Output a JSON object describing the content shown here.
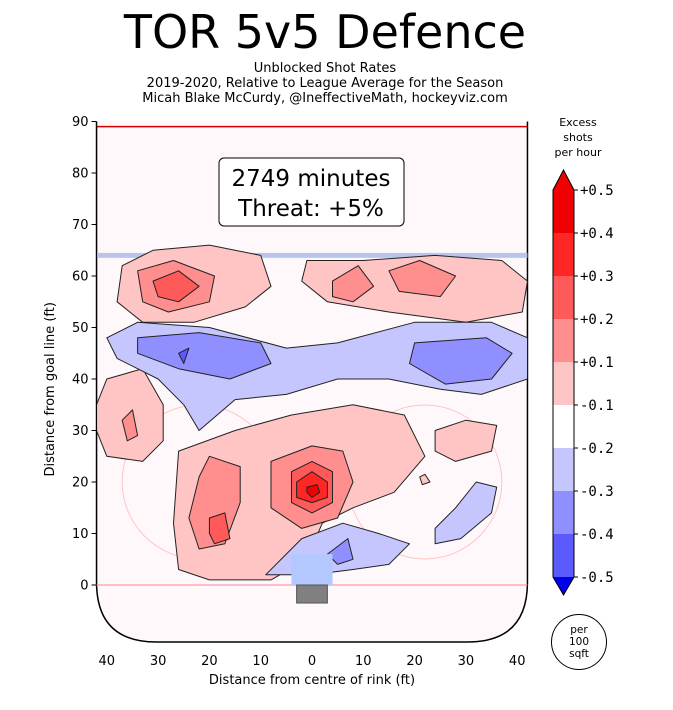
{
  "header": {
    "title": "TOR 5v5 Defence",
    "subtitle_lines": [
      "Unblocked Shot Rates",
      "2019-2020, Relative to League Average for the Season",
      "Micah Blake McCurdy, @IneffectiveMath, hockeyviz.com"
    ]
  },
  "info_box": {
    "line1": "2749 minutes",
    "line2": "Threat: +5%"
  },
  "colorbar": {
    "title_lines": [
      "Excess",
      "shots",
      "per hour"
    ],
    "tick_labels": [
      "+0.5",
      "+0.4",
      "+0.3",
      "+0.2",
      "+0.1",
      "-0.1",
      "-0.2",
      "-0.3",
      "-0.4",
      "-0.5"
    ]
  },
  "note": {
    "lines": [
      "per",
      "100",
      "sqft"
    ]
  },
  "colors": {
    "red_levels": [
      "#ffc4c4",
      "#ff8f8f",
      "#ff5a5a",
      "#ff2626",
      "#f00000"
    ],
    "blue_levels": [
      "#c6c6ff",
      "#8f8fff",
      "#5a5aff",
      "#2626ff",
      "#0000f0"
    ],
    "rink_fill": "#fff8fb",
    "blue_line": "#b8c6ee",
    "goal_line": "#ff9ba6",
    "faceoff_circle": "#ffc4c4",
    "crease": "#b3c8ff",
    "net": "#808080"
  },
  "chart_data": {
    "type": "heatmap",
    "title": "TOR 5v5 Defence",
    "xlabel": "Distance from centre of rink (ft)",
    "ylabel": "Distance from goal line (ft)",
    "xlim": [
      -42,
      42
    ],
    "ylim": [
      -11,
      90
    ],
    "x_ticks": [
      -40,
      -30,
      -20,
      -10,
      0,
      10,
      20,
      30,
      40
    ],
    "x_tick_labels": [
      "40",
      "30",
      "20",
      "10",
      "0",
      "10",
      "20",
      "30",
      "40"
    ],
    "y_ticks": [
      0,
      10,
      20,
      30,
      40,
      50,
      60,
      70,
      80,
      90
    ],
    "y_tick_labels": [
      "0",
      "10",
      "20",
      "30",
      "40",
      "50",
      "60",
      "70",
      "80",
      "90"
    ],
    "colorbar_range": [
      -0.5,
      0.5
    ],
    "colorbar_unit": "Excess shots per hour",
    "regions": [
      {
        "sign": "+",
        "level": 1,
        "points": [
          [
            -37,
            62
          ],
          [
            -31,
            65
          ],
          [
            -20,
            66
          ],
          [
            -10,
            64
          ],
          [
            -8,
            58
          ],
          [
            -13,
            54
          ],
          [
            -23,
            51
          ],
          [
            -33,
            51
          ],
          [
            -38,
            55
          ]
        ]
      },
      {
        "sign": "+",
        "level": 2,
        "points": [
          [
            -34,
            61
          ],
          [
            -27,
            63
          ],
          [
            -19,
            60
          ],
          [
            -20,
            55
          ],
          [
            -28,
            53
          ],
          [
            -33,
            55
          ]
        ]
      },
      {
        "sign": "+",
        "level": 3,
        "points": [
          [
            -31,
            59
          ],
          [
            -26,
            61
          ],
          [
            -22,
            58
          ],
          [
            -26,
            55
          ],
          [
            -30,
            56
          ]
        ]
      },
      {
        "sign": "+",
        "level": 1,
        "points": [
          [
            -1,
            63
          ],
          [
            10,
            63
          ],
          [
            24,
            64
          ],
          [
            37,
            63
          ],
          [
            42,
            59
          ],
          [
            41,
            53
          ],
          [
            30,
            51
          ],
          [
            15,
            53
          ],
          [
            3,
            55
          ],
          [
            -2,
            59
          ]
        ]
      },
      {
        "sign": "+",
        "level": 2,
        "points": [
          [
            4,
            59
          ],
          [
            9,
            62
          ],
          [
            12,
            58
          ],
          [
            8,
            55
          ],
          [
            4,
            56
          ]
        ]
      },
      {
        "sign": "+",
        "level": 2,
        "points": [
          [
            15,
            61
          ],
          [
            21,
            63
          ],
          [
            28,
            60
          ],
          [
            25,
            56
          ],
          [
            17,
            57
          ]
        ]
      },
      {
        "sign": "+",
        "level": 1,
        "points": [
          [
            -42,
            35
          ],
          [
            -40,
            40
          ],
          [
            -33,
            42
          ],
          [
            -29,
            35
          ],
          [
            -29,
            28
          ],
          [
            -33,
            24
          ],
          [
            -40,
            25
          ],
          [
            -42,
            30
          ]
        ]
      },
      {
        "sign": "+",
        "level": 2,
        "points": [
          [
            -37,
            32
          ],
          [
            -35,
            34
          ],
          [
            -34,
            29
          ],
          [
            -36,
            28
          ]
        ]
      },
      {
        "sign": "+",
        "level": 1,
        "points": [
          [
            -26,
            26
          ],
          [
            -15,
            30
          ],
          [
            -4,
            33
          ],
          [
            8,
            35
          ],
          [
            18,
            33
          ],
          [
            22,
            25
          ],
          [
            16,
            18
          ],
          [
            8,
            15
          ],
          [
            2,
            12
          ],
          [
            -1,
            5
          ],
          [
            -8,
            1
          ],
          [
            -20,
            1
          ],
          [
            -26,
            3
          ],
          [
            -27,
            12
          ]
        ]
      },
      {
        "sign": "+",
        "level": 2,
        "points": [
          [
            -22,
            21
          ],
          [
            -20,
            25
          ],
          [
            -14,
            23
          ],
          [
            -14,
            16
          ],
          [
            -17,
            8
          ],
          [
            -22,
            7
          ],
          [
            -24,
            13
          ]
        ]
      },
      {
        "sign": "+",
        "level": 2,
        "points": [
          [
            -8,
            24
          ],
          [
            0,
            27
          ],
          [
            6,
            26
          ],
          [
            8,
            20
          ],
          [
            5,
            13
          ],
          [
            -2,
            11
          ],
          [
            -8,
            15
          ]
        ]
      },
      {
        "sign": "+",
        "level": 3,
        "points": [
          [
            -4,
            22
          ],
          [
            0,
            24
          ],
          [
            4,
            22
          ],
          [
            4,
            16
          ],
          [
            0,
            14
          ],
          [
            -4,
            16
          ]
        ]
      },
      {
        "sign": "+",
        "level": 3,
        "points": [
          [
            -20,
            13
          ],
          [
            -17,
            14
          ],
          [
            -16,
            9
          ],
          [
            -19,
            8
          ],
          [
            -20,
            10
          ]
        ]
      },
      {
        "sign": "+",
        "level": 4,
        "points": [
          [
            -3,
            20
          ],
          [
            0,
            22
          ],
          [
            3,
            20
          ],
          [
            3,
            17
          ],
          [
            0,
            16
          ],
          [
            -3,
            17
          ]
        ]
      },
      {
        "sign": "+",
        "level": 5,
        "points": [
          [
            -1,
            19
          ],
          [
            1,
            19.5
          ],
          [
            1.5,
            18
          ],
          [
            0,
            17
          ],
          [
            -1,
            18
          ]
        ]
      },
      {
        "sign": "+",
        "level": 1,
        "points": [
          [
            24,
            30
          ],
          [
            30,
            32
          ],
          [
            36,
            31
          ],
          [
            35,
            26
          ],
          [
            28,
            24
          ],
          [
            24,
            26
          ]
        ]
      },
      {
        "sign": "-",
        "level": 1,
        "points": [
          [
            -40,
            48
          ],
          [
            -34,
            51
          ],
          [
            -20,
            50
          ],
          [
            -5,
            46
          ],
          [
            5,
            47
          ],
          [
            20,
            51
          ],
          [
            35,
            51
          ],
          [
            42,
            48
          ],
          [
            42,
            40
          ],
          [
            33,
            37
          ],
          [
            25,
            38
          ],
          [
            15,
            40
          ],
          [
            5,
            40
          ],
          [
            -5,
            37
          ],
          [
            -15,
            36
          ],
          [
            -22,
            30
          ],
          [
            -25,
            35
          ],
          [
            -30,
            40
          ],
          [
            -38,
            44
          ]
        ]
      },
      {
        "sign": "-",
        "level": 2,
        "points": [
          [
            -34,
            48
          ],
          [
            -22,
            49
          ],
          [
            -10,
            47
          ],
          [
            -8,
            43
          ],
          [
            -16,
            40
          ],
          [
            -26,
            42
          ],
          [
            -34,
            45
          ]
        ]
      },
      {
        "sign": "-",
        "level": 2,
        "points": [
          [
            20,
            47
          ],
          [
            34,
            48
          ],
          [
            39,
            45
          ],
          [
            35,
            40
          ],
          [
            26,
            39
          ],
          [
            19,
            43
          ]
        ]
      },
      {
        "sign": "-",
        "level": 3,
        "points": [
          [
            -26,
            45
          ],
          [
            -24,
            46
          ],
          [
            -25,
            43
          ]
        ]
      },
      {
        "sign": "-",
        "level": 1,
        "points": [
          [
            -9,
            2
          ],
          [
            -2,
            9
          ],
          [
            6,
            12
          ],
          [
            13,
            10
          ],
          [
            19,
            8
          ],
          [
            15,
            4
          ],
          [
            8,
            3
          ],
          [
            0,
            2
          ]
        ]
      },
      {
        "sign": "-",
        "level": 2,
        "points": [
          [
            3,
            6
          ],
          [
            7,
            9
          ],
          [
            8,
            5
          ],
          [
            5,
            4
          ]
        ]
      },
      {
        "sign": "-",
        "level": 1,
        "points": [
          [
            24,
            8
          ],
          [
            29,
            9
          ],
          [
            35,
            14
          ],
          [
            36,
            19
          ],
          [
            32,
            20
          ],
          [
            28,
            15
          ],
          [
            24,
            11
          ]
        ]
      },
      {
        "sign": "+",
        "level": 1,
        "points": [
          [
            21,
            21
          ],
          [
            22,
            21.5
          ],
          [
            23,
            20
          ],
          [
            21.5,
            19.5
          ]
        ]
      }
    ]
  }
}
